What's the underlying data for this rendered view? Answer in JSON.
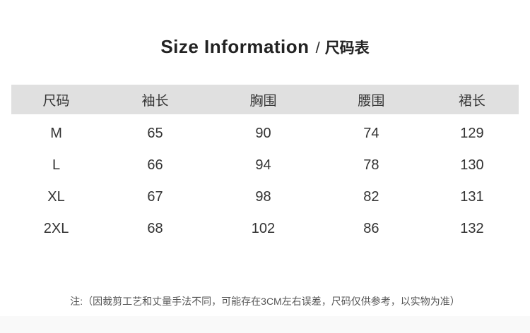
{
  "title": {
    "en": "Size Information",
    "separator": "/",
    "zh": "尺码表"
  },
  "table": {
    "headers": [
      "尺码",
      "袖长",
      "胸围",
      "腰围",
      "裙长"
    ],
    "rows": [
      [
        "M",
        "65",
        "90",
        "74",
        "129"
      ],
      [
        "L",
        "66",
        "94",
        "78",
        "130"
      ],
      [
        "XL",
        "67",
        "98",
        "82",
        "131"
      ],
      [
        "2XL",
        "68",
        "102",
        "86",
        "132"
      ]
    ]
  },
  "note": "注:（因裁剪工艺和丈量手法不同，可能存在3CM左右误差，尺码仅供参考，以实物为准）",
  "colors": {
    "header_bg": "#e0e0e0",
    "footer_bg": "#f9f9f9",
    "title_text": "#222222",
    "table_text": "#333333",
    "note_text": "#555555"
  },
  "chart_data": {
    "type": "table",
    "title": "Size Information / 尺码表",
    "columns": [
      "尺码",
      "袖长",
      "胸围",
      "腰围",
      "裙长"
    ],
    "rows": [
      [
        "M",
        65,
        90,
        74,
        129
      ],
      [
        "L",
        66,
        94,
        78,
        130
      ],
      [
        "XL",
        67,
        98,
        82,
        131
      ],
      [
        "2XL",
        68,
        102,
        86,
        132
      ]
    ],
    "footnote": "注:（因裁剪工艺和丈量手法不同，可能存在3CM左右误差，尺码仅供参考，以实物为准）"
  }
}
